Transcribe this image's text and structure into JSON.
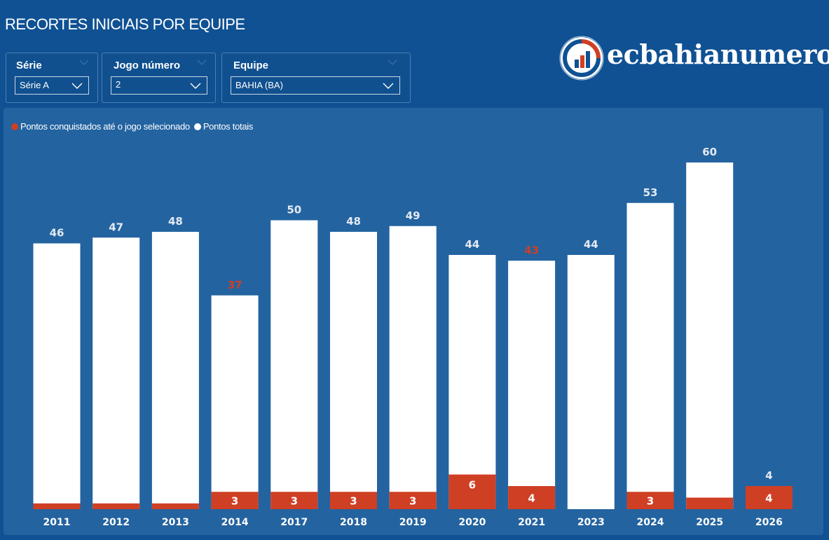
{
  "title": "RECORTES INICIAIS POR EQUIPE",
  "filters": {
    "serie": {
      "label": "Série",
      "value": "Série A"
    },
    "jogo": {
      "label": "Jogo número",
      "value": "2"
    },
    "equipe": {
      "label": "Equipe",
      "value": "BAHIA (BA)"
    }
  },
  "logo": {
    "text": "ecbahianumeros"
  },
  "colors": {
    "background": "#0f5193",
    "panel": "#2363a0",
    "red": "#cf3f24",
    "white": "#ffffff",
    "label_light": "#e3eaf3"
  },
  "chart_data": {
    "type": "bar",
    "legend": [
      {
        "name": "Pontos conquistados até o jogo selecionado",
        "color": "#cf3f24"
      },
      {
        "name": "Pontos totais",
        "color": "#ffffff"
      }
    ],
    "categories": [
      "2011",
      "2012",
      "2013",
      "2014",
      "2017",
      "2018",
      "2019",
      "2020",
      "2021",
      "2023",
      "2024",
      "2025",
      "2026"
    ],
    "series": [
      {
        "name": "Pontos totais",
        "values": [
          46,
          47,
          48,
          37,
          50,
          48,
          49,
          44,
          43,
          44,
          53,
          60,
          4
        ]
      },
      {
        "name": "Pontos conquistados até o jogo selecionado",
        "values": [
          1,
          1,
          1,
          3,
          3,
          3,
          3,
          6,
          4,
          0,
          3,
          2,
          4
        ]
      }
    ],
    "total_labels": [
      "46",
      "47",
      "48",
      "37",
      "50",
      "48",
      "49",
      "44",
      "43",
      "44",
      "53",
      "60",
      "4"
    ],
    "total_label_colors": [
      "#e3eaf3",
      "#e3eaf3",
      "#e3eaf3",
      "#cf3f24",
      "#e3eaf3",
      "#e3eaf3",
      "#e3eaf3",
      "#e3eaf3",
      "#cf3f24",
      "#e3eaf3",
      "#e3eaf3",
      "#e3eaf3",
      "#e3eaf3"
    ],
    "partial_labels": [
      "",
      "",
      "",
      "3",
      "3",
      "3",
      "3",
      "6",
      "4",
      "",
      "3",
      "",
      "4"
    ],
    "ylim": [
      0,
      60
    ]
  }
}
